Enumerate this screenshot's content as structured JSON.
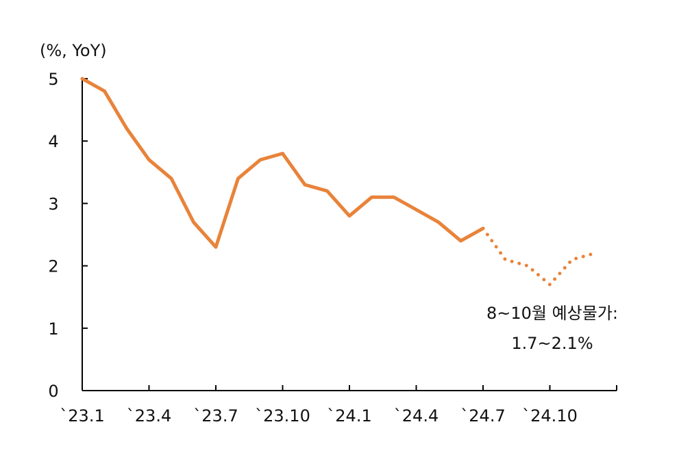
{
  "chart_data": {
    "type": "line",
    "unit_label": "(%, YoY)",
    "ylim": [
      0,
      5
    ],
    "y_ticks": [
      "0",
      "1",
      "2",
      "3",
      "4",
      "5"
    ],
    "x_tick_labels": [
      "`23.1",
      "`23.4",
      "`23.7",
      "`23.10",
      "`24.1",
      "`24.4",
      "`24.7",
      "`24.10"
    ],
    "x_tick_months": [
      "2023-01",
      "2023-04",
      "2023-07",
      "2023-10",
      "2024-01",
      "2024-04",
      "2024-07",
      "2024-10"
    ],
    "grid": false,
    "series": [
      {
        "style": "solid",
        "color": "#E8833A",
        "x": [
          "2023-01",
          "2023-02",
          "2023-03",
          "2023-04",
          "2023-05",
          "2023-06",
          "2023-07",
          "2023-08",
          "2023-09",
          "2023-10",
          "2023-11",
          "2023-12",
          "2024-01",
          "2024-02",
          "2024-03",
          "2024-04",
          "2024-05",
          "2024-06",
          "2024-07"
        ],
        "values": [
          5.0,
          4.8,
          4.2,
          3.7,
          3.4,
          2.7,
          2.3,
          3.4,
          3.7,
          3.8,
          3.3,
          3.2,
          2.8,
          3.1,
          3.1,
          2.9,
          2.7,
          2.4,
          2.6
        ]
      },
      {
        "style": "dotted",
        "color": "#E8833A",
        "x": [
          "2024-07",
          "2024-08",
          "2024-09",
          "2024-10",
          "2024-11",
          "2024-12"
        ],
        "values": [
          2.6,
          2.1,
          2.0,
          1.7,
          2.1,
          2.2
        ]
      }
    ],
    "annotation": {
      "line1": "8~10월 예상물가:",
      "line2": "1.7~2.1%"
    }
  }
}
